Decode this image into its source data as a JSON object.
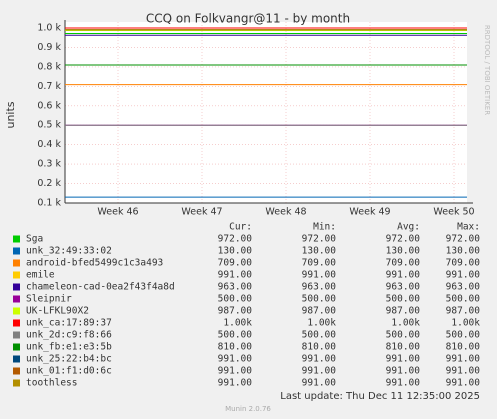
{
  "chart_data": {
    "type": "line",
    "title": "CCQ on Folkvangr@11 - by month",
    "y_label": "units",
    "side_label": "RRDTOOL / TOBI OETIKER",
    "x_labels": [
      "Week 46",
      "Week 47",
      "Week 48",
      "Week 49",
      "Week 50"
    ],
    "ylim": [
      100,
      1000
    ],
    "yticks": [
      {
        "value": 1000,
        "label": "1.0 k"
      },
      {
        "value": 900,
        "label": "0.9 k"
      },
      {
        "value": 800,
        "label": "0.8 k"
      },
      {
        "value": 700,
        "label": "0.7 k"
      },
      {
        "value": 600,
        "label": "0.6 k"
      },
      {
        "value": 500,
        "label": "0.5 k"
      },
      {
        "value": 400,
        "label": "0.4 k"
      },
      {
        "value": 300,
        "label": "0.3 k"
      },
      {
        "value": 200,
        "label": "0.2 k"
      },
      {
        "value": 100,
        "label": "0.1 k"
      }
    ],
    "grid": true,
    "columns": [
      "Cur:",
      "Min:",
      "Avg:",
      "Max:"
    ],
    "series": [
      {
        "name": "Sga",
        "color": "#00cc00",
        "values": [
          972,
          972,
          972,
          972
        ],
        "value_labels": [
          "972.00",
          "972.00",
          "972.00",
          "972.00"
        ]
      },
      {
        "name": "unk_32:49:33:02",
        "color": "#0066b3",
        "values": [
          130,
          130,
          130,
          130
        ],
        "value_labels": [
          "130.00",
          "130.00",
          "130.00",
          "130.00"
        ]
      },
      {
        "name": "android-bfed5499c1c3a493",
        "color": "#ff8000",
        "values": [
          709,
          709,
          709,
          709
        ],
        "value_labels": [
          "709.00",
          "709.00",
          "709.00",
          "709.00"
        ]
      },
      {
        "name": "emile",
        "color": "#ffcc00",
        "values": [
          991,
          991,
          991,
          991
        ],
        "value_labels": [
          "991.00",
          "991.00",
          "991.00",
          "991.00"
        ]
      },
      {
        "name": "chameleon-cad-0ea2f43f4a8d",
        "color": "#330099",
        "values": [
          963,
          963,
          963,
          963
        ],
        "value_labels": [
          "963.00",
          "963.00",
          "963.00",
          "963.00"
        ]
      },
      {
        "name": "Sleipnir",
        "color": "#990099",
        "values": [
          500,
          500,
          500,
          500
        ],
        "value_labels": [
          "500.00",
          "500.00",
          "500.00",
          "500.00"
        ]
      },
      {
        "name": "UK-LFKL90X2",
        "color": "#ccff00",
        "values": [
          987,
          987,
          987,
          987
        ],
        "value_labels": [
          "987.00",
          "987.00",
          "987.00",
          "987.00"
        ]
      },
      {
        "name": "unk_ca:17:89:37",
        "color": "#ff0000",
        "values": [
          1000,
          1000,
          1000,
          1000
        ],
        "value_labels": [
          "1.00k",
          "1.00k",
          "1.00k",
          "1.00k"
        ]
      },
      {
        "name": "unk_2d:c9:f8:66",
        "color": "#808080",
        "values": [
          500,
          500,
          500,
          500
        ],
        "value_labels": [
          "500.00",
          "500.00",
          "500.00",
          "500.00"
        ]
      },
      {
        "name": "unk_fb:e1:e3:5b",
        "color": "#008f00",
        "values": [
          810,
          810,
          810,
          810
        ],
        "value_labels": [
          "810.00",
          "810.00",
          "810.00",
          "810.00"
        ]
      },
      {
        "name": "unk_25:22:b4:bc",
        "color": "#00487d",
        "values": [
          991,
          991,
          991,
          991
        ],
        "value_labels": [
          "991.00",
          "991.00",
          "991.00",
          "991.00"
        ]
      },
      {
        "name": "unk_01:f1:d0:6c",
        "color": "#b35a00",
        "values": [
          991,
          991,
          991,
          991
        ],
        "value_labels": [
          "991.00",
          "991.00",
          "991.00",
          "991.00"
        ]
      },
      {
        "name": "toothless",
        "color": "#b38f00",
        "values": [
          991,
          991,
          991,
          991
        ],
        "value_labels": [
          "991.00",
          "991.00",
          "991.00",
          "991.00"
        ]
      }
    ],
    "last_update": "Last update: Thu Dec 11 12:35:00 2025",
    "footer": "Munin 2.0.76"
  }
}
